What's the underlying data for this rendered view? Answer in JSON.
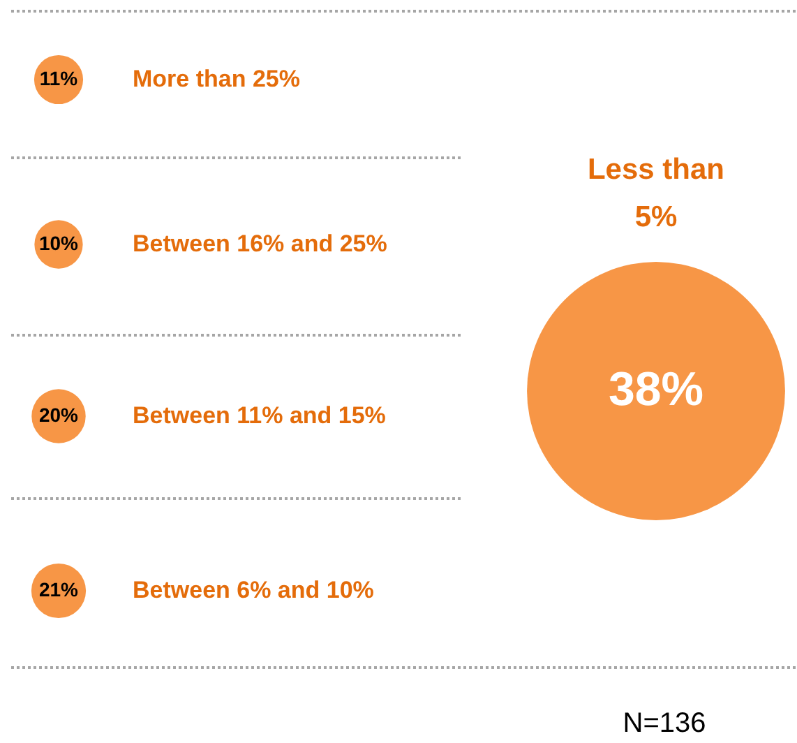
{
  "chart_data": {
    "type": "other",
    "categories": [
      "More than 25%",
      "Between 16% and 25%",
      "Between 11% and 15%",
      "Between 6% and 10%",
      "Less than 5%"
    ],
    "values": [
      11,
      10,
      20,
      21,
      38
    ],
    "value_labels": [
      "11%",
      "10%",
      "20%",
      "21%",
      "38%"
    ],
    "color": "#f79646",
    "annotations": [
      "N=136"
    ]
  }
}
